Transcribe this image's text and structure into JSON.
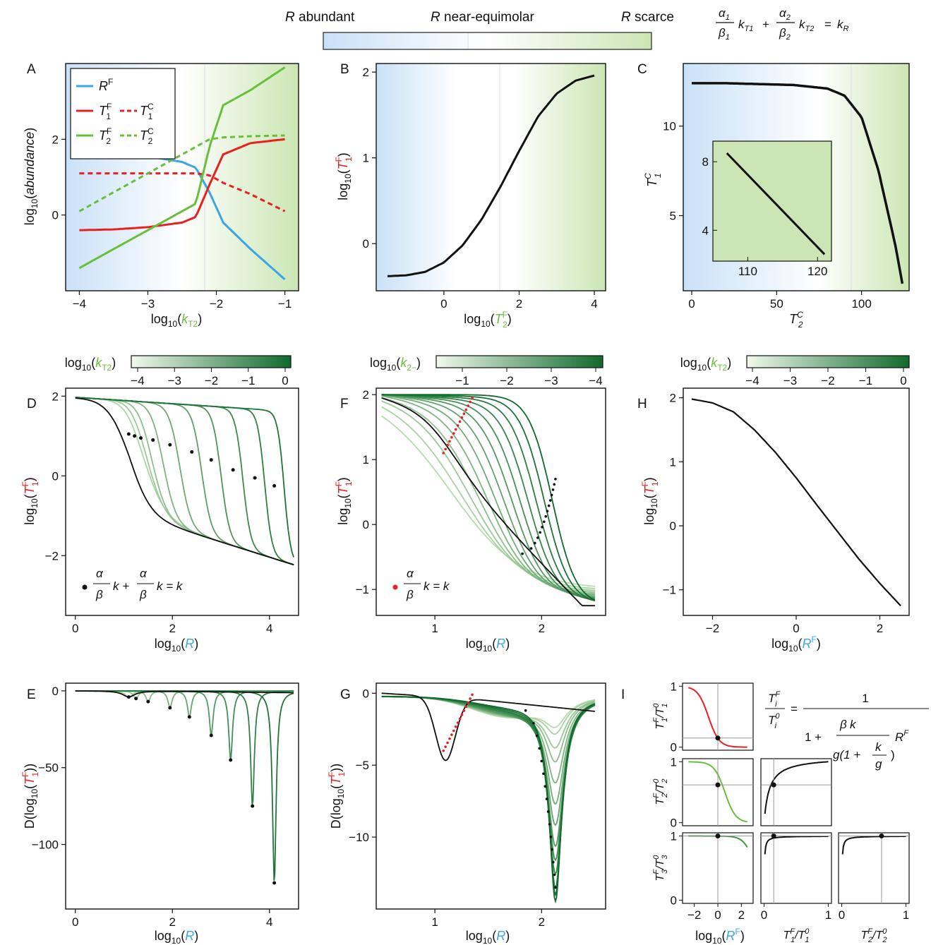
{
  "header": {
    "gradient_labels": [
      "R abundant",
      "R near-equimolar",
      "R scarce"
    ],
    "colors": {
      "blue": "#cfe4f8",
      "white": "#ffffff",
      "green": "#cbe6b4"
    },
    "constraint": {
      "a1": "α",
      "b1": "β",
      "k1": "k",
      "s1": "T1",
      "a2": "α",
      "b2": "β",
      "k2": "k",
      "s2": "T2",
      "rhs": "k",
      "rs": "R"
    }
  },
  "colors": {
    "R": "#3aa6e6",
    "T1": "#e8201f",
    "T2": "#6abf3a",
    "T3": "#3f9a3a",
    "black": "#111111",
    "red": "#e8201f",
    "greenDark": "#1a6a34"
  },
  "text": {
    "R": "R",
    "T": "T",
    "F": "F",
    "C": "C",
    "log10": "log",
    "ten": "10",
    "D": "D",
    "abundance": "abundance",
    "k": "k",
    "T2s": "T2",
    "twominus": "2−",
    "one": "1",
    "two": "2",
    "three": "3",
    "zero": "0",
    "alpha": "α",
    "beta": "β",
    "eq": "=",
    "plus": "+",
    "kR": "k",
    "Rsub": "R",
    "T1sub": "T1",
    "T2sub": "T2"
  },
  "panels": {
    "A": {
      "label": "A",
      "xlim": [
        -4.2,
        -0.8
      ],
      "ylim": [
        -2.0,
        4.0
      ],
      "xticks": [
        "-4",
        "-3",
        "-2",
        "-1"
      ],
      "yticks": [
        "0",
        "2"
      ],
      "legend": [
        "R F",
        "T1 F",
        "T1 C",
        "T2 F",
        "T2 C"
      ]
    },
    "B": {
      "label": "B",
      "xticks": [
        "0",
        "2",
        "4"
      ],
      "yticks": [
        "0",
        "1",
        "2"
      ]
    },
    "C": {
      "label": "C",
      "xticks": [
        "0",
        "50",
        "100"
      ],
      "yticks": [
        "5",
        "10"
      ],
      "inset_xticks": [
        "110",
        "120"
      ],
      "inset_yticks": [
        "4",
        "8"
      ]
    },
    "D": {
      "label": "D",
      "xticks": [
        "0",
        "2",
        "4"
      ],
      "yticks": [
        "-2",
        "0",
        "2"
      ],
      "cbar_ticks": [
        "-4",
        "-3",
        "-2",
        "-1",
        "0"
      ]
    },
    "E": {
      "label": "E",
      "xticks": [
        "0",
        "2",
        "4"
      ],
      "yticks": [
        "-100",
        "-50",
        "0"
      ]
    },
    "F": {
      "label": "F",
      "xticks": [
        "1",
        "2"
      ],
      "yticks": [
        "-1",
        "0",
        "1",
        "2"
      ],
      "cbar_ticks": [
        "-1",
        "-2",
        "-3",
        "-4"
      ]
    },
    "G": {
      "label": "G",
      "xticks": [
        "1",
        "2"
      ],
      "yticks": [
        "-10",
        "-5",
        "0"
      ]
    },
    "H": {
      "label": "H",
      "xticks": [
        "-2",
        "0",
        "2"
      ],
      "yticks": [
        "-1",
        "0",
        "1",
        "2"
      ],
      "cbar_ticks": [
        "-4",
        "-3",
        "-2",
        "-1",
        "0"
      ]
    },
    "I": {
      "label": "I",
      "xticks_R": [
        "-2",
        "0",
        "2"
      ],
      "xticks_frac": [
        "0",
        "1"
      ],
      "yticks": [
        "0",
        "1"
      ],
      "formula": {
        "num": "1",
        "one": "1",
        "plus": "+",
        "beta": "β",
        "k": "k",
        "iplus": "i+",
        "g": "g",
        "Ti": "Ti",
        "iminus": "i−",
        "gi": "g",
        "i": "i"
      }
    }
  },
  "chart_data": [
    {
      "panel": "A",
      "type": "line",
      "x": [
        -4,
        -3.5,
        -3,
        -2.5,
        -2.3,
        -2.1,
        -1.9,
        -1.5,
        -1
      ],
      "series": [
        {
          "name": "R F",
          "color": "#3aa6e6",
          "dash": false,
          "values": [
            1.6,
            1.6,
            1.55,
            1.4,
            1.25,
            0.6,
            -0.2,
            -0.9,
            -1.7
          ]
        },
        {
          "name": "T1 F",
          "color": "#e8201f",
          "dash": false,
          "values": [
            -0.4,
            -0.38,
            -0.32,
            -0.2,
            -0.05,
            0.8,
            1.6,
            1.9,
            2.0
          ]
        },
        {
          "name": "T1 C",
          "color": "#e8201f",
          "dash": true,
          "values": [
            1.1,
            1.1,
            1.1,
            1.1,
            1.1,
            1.05,
            0.85,
            0.55,
            0.1
          ]
        },
        {
          "name": "T2 F",
          "color": "#6abf3a",
          "dash": false,
          "values": [
            -1.4,
            -0.9,
            -0.4,
            0.1,
            0.3,
            1.8,
            2.9,
            3.3,
            3.9
          ]
        },
        {
          "name": "T2 C",
          "color": "#6abf3a",
          "dash": true,
          "values": [
            0.1,
            0.6,
            1.1,
            1.6,
            1.8,
            2.0,
            2.05,
            2.08,
            2.1
          ]
        }
      ]
    },
    {
      "panel": "B",
      "type": "line",
      "xlim": [
        -1.8,
        4.3
      ],
      "ylim": [
        -0.55,
        2.1
      ],
      "x": [
        -1.5,
        -1,
        -0.5,
        0,
        0.5,
        1,
        1.5,
        2,
        2.5,
        3,
        3.5,
        4
      ],
      "values": [
        -0.38,
        -0.37,
        -0.33,
        -0.22,
        -0.02,
        0.28,
        0.66,
        1.08,
        1.48,
        1.75,
        1.9,
        1.96
      ]
    },
    {
      "panel": "C",
      "type": "line",
      "xlim": [
        -5,
        128
      ],
      "ylim": [
        0.8,
        13.5
      ],
      "x": [
        0,
        20,
        40,
        60,
        80,
        90,
        100,
        110,
        120,
        124
      ],
      "values": [
        12.4,
        12.4,
        12.35,
        12.3,
        12.1,
        11.7,
        10.5,
        7.5,
        3.3,
        1.2
      ],
      "inset": {
        "xlim": [
          105,
          122
        ],
        "ylim": [
          2.2,
          9.2
        ],
        "x": [
          107,
          121
        ],
        "values": [
          8.5,
          2.6
        ]
      }
    },
    {
      "panel": "D",
      "type": "line",
      "xlim": [
        -0.2,
        4.6
      ],
      "ylim": [
        -3.5,
        2.2
      ],
      "series_count": 10,
      "k_T2_log": [
        -4,
        -3.5,
        -3,
        -2.5,
        -2,
        -1.5,
        -1,
        -0.5,
        0,
        0.25
      ],
      "constraint_points": {
        "x": [
          1.1,
          1.22,
          1.35,
          1.6,
          1.95,
          2.4,
          2.8,
          3.25,
          3.7,
          4.1
        ],
        "y": [
          1.05,
          1.0,
          0.95,
          0.9,
          0.78,
          0.6,
          0.4,
          0.15,
          -0.05,
          -0.25
        ]
      }
    },
    {
      "panel": "E",
      "type": "line",
      "xlim": [
        -0.2,
        4.6
      ],
      "ylim": [
        -142,
        5
      ],
      "dip_x": [
        1.1,
        1.25,
        1.5,
        1.95,
        2.35,
        2.8,
        3.2,
        3.65,
        4.1
      ],
      "dip_depth": [
        -4,
        -5,
        -7,
        -11,
        -17,
        -29,
        -45,
        -75,
        -125
      ]
    },
    {
      "panel": "F",
      "type": "line",
      "xlim": [
        0.45,
        2.6
      ],
      "ylim": [
        -1.4,
        2.1
      ],
      "series_count": 13,
      "k2_minus_log": [
        -0.6,
        -0.9,
        -1.2,
        -1.5,
        -1.8,
        -2.1,
        -2.4,
        -2.7,
        -3.0,
        -3.3,
        -3.6,
        -3.9,
        -4.2
      ],
      "red_points": {
        "x": [
          1.08,
          1.35
        ],
        "y": [
          1.1,
          1.95
        ]
      },
      "black_points": {
        "x": [
          1.82,
          2.13
        ],
        "y": [
          -0.45,
          0.7
        ]
      }
    },
    {
      "panel": "G",
      "type": "line",
      "xlim": [
        0.45,
        2.6
      ],
      "ylim": [
        -15,
        0.7
      ],
      "black_valley": {
        "x": 1.1,
        "depth": -4.4
      },
      "green_valley": {
        "x": 2.13,
        "depth": [
          -1.5,
          -2,
          -3,
          -4,
          -5.5,
          -7,
          -8.5,
          -10,
          -11,
          -12,
          -13,
          -13.5,
          -14
        ]
      }
    },
    {
      "panel": "H",
      "type": "line",
      "xlim": [
        -2.7,
        2.7
      ],
      "ylim": [
        -1.4,
        2.15
      ],
      "x": [
        -2.5,
        -2,
        -1.5,
        -1,
        -0.5,
        0,
        0.5,
        1,
        1.5,
        2,
        2.5
      ],
      "values": [
        1.98,
        1.92,
        1.78,
        1.5,
        1.15,
        0.75,
        0.32,
        -0.1,
        -0.52,
        -0.9,
        -1.25
      ]
    },
    {
      "panel": "I",
      "type": "line",
      "description_free": true,
      "curves": [
        {
          "name": "T1",
          "color": "#e8201f",
          "center": -0.8,
          "marker_x": 0,
          "marker_y": 0.15
        },
        {
          "name": "T2",
          "color": "#6abf3a",
          "center": 0.6,
          "marker_x": 0,
          "marker_y": 0.62
        },
        {
          "name": "T3",
          "color": "#3f9a3a",
          "center": 3.2,
          "marker_x": 0,
          "marker_y": 1.0
        }
      ]
    }
  ]
}
